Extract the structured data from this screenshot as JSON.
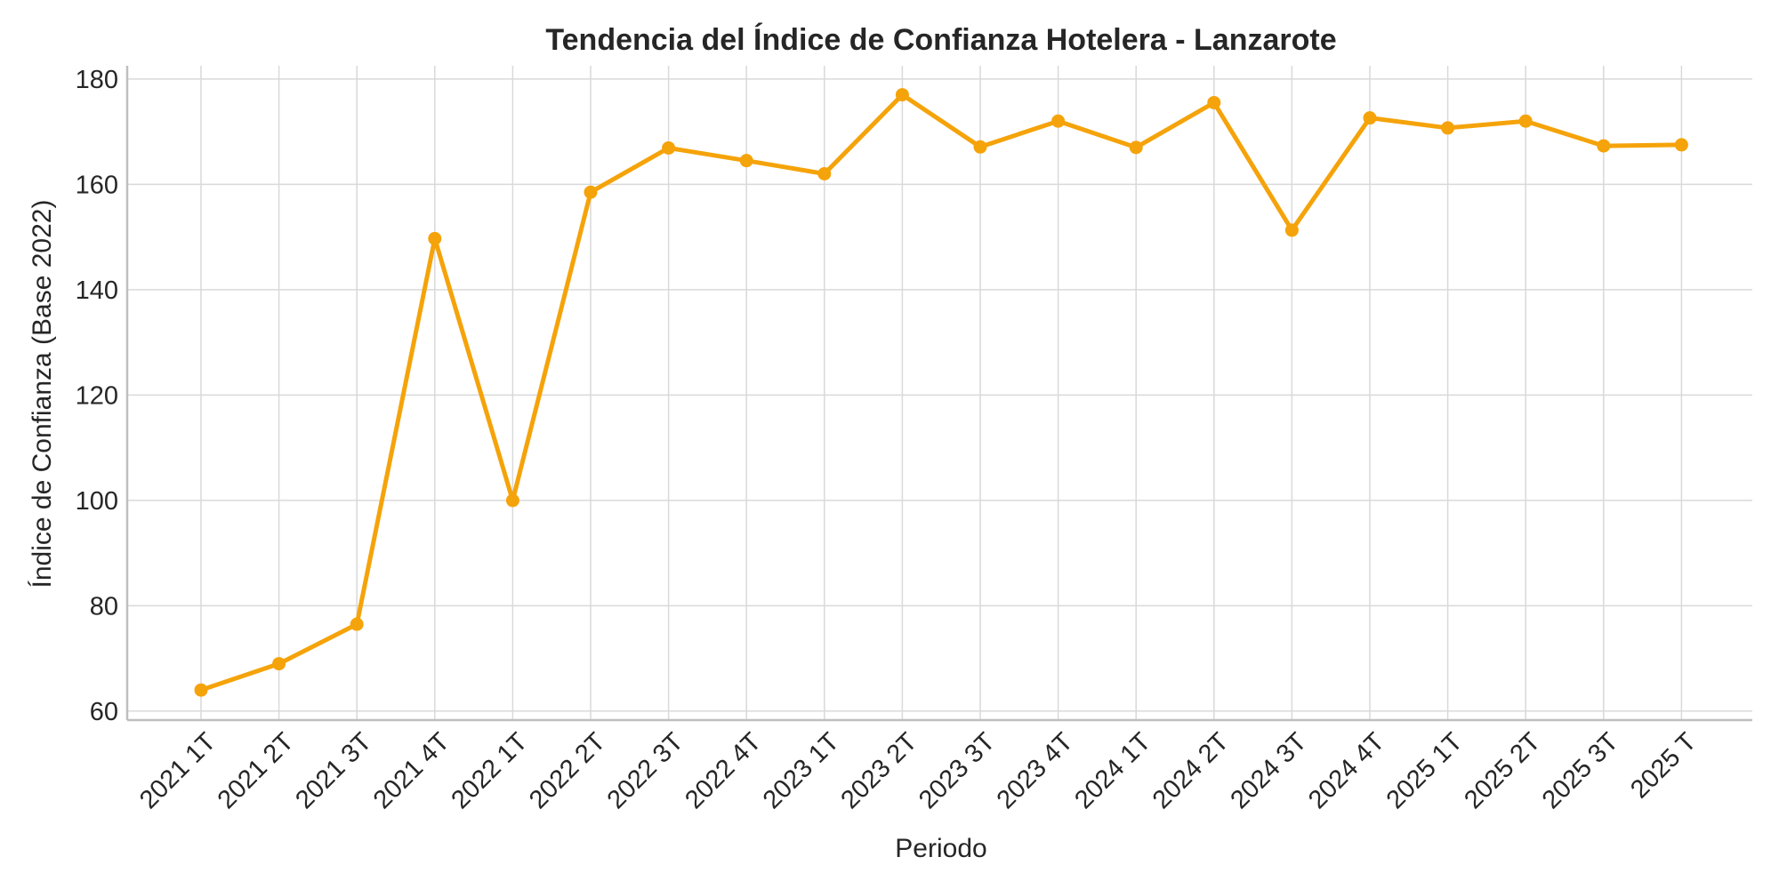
{
  "chart_data": {
    "type": "line",
    "title": "Tendencia del Índice de Confianza Hotelera - Lanzarote",
    "xlabel": "Periodo",
    "ylabel": "Índice de Confianza (Base 2022)",
    "categories": [
      "2021 1T",
      "2021 2T",
      "2021 3T",
      "2021 4T",
      "2022 1T",
      "2022 2T",
      "2022 3T",
      "2022 4T",
      "2023 1T",
      "2023 2T",
      "2023 3T",
      "2023 4T",
      "2024 1T",
      "2024 2T",
      "2024 3T",
      "2024 4T",
      "2025 1T",
      "2025 2T",
      "2025 3T",
      "2025 T"
    ],
    "series": [
      {
        "values": [
          64.0,
          69.0,
          76.5,
          149.7,
          100.0,
          158.5,
          166.9,
          164.5,
          162.0,
          177.0,
          167.1,
          172.0,
          167.0,
          175.5,
          151.3,
          172.6,
          170.7,
          172.0,
          167.3,
          167.5
        ],
        "color": "#f5a30a"
      }
    ],
    "ylim": [
      58.3,
      182.5
    ],
    "yticks": [
      60,
      80,
      100,
      120,
      140,
      160,
      180
    ],
    "grid": true,
    "legend": "none"
  }
}
